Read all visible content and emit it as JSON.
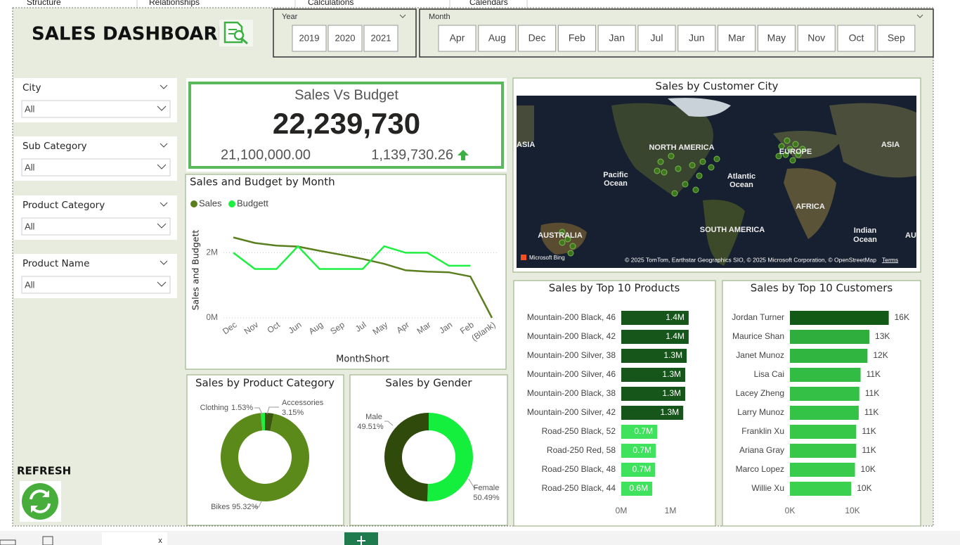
{
  "tabs": [
    "Structure",
    "Relationships",
    "Calculations",
    "Calendars"
  ],
  "header": {
    "title": "SALES DASHBOARD"
  },
  "year_slicer": {
    "title": "Year",
    "items": [
      "2019",
      "2020",
      "2021"
    ]
  },
  "month_slicer": {
    "title": "Month",
    "items": [
      "Apr",
      "Aug",
      "Dec",
      "Feb",
      "Jan",
      "Jul",
      "Jun",
      "Mar",
      "May",
      "Nov",
      "Oct",
      "Sep"
    ]
  },
  "slicers": [
    {
      "title": "City",
      "value": "All"
    },
    {
      "title": "Sub Category",
      "value": "All"
    },
    {
      "title": "Product Category",
      "value": "All"
    },
    {
      "title": "Product Name",
      "value": "All"
    }
  ],
  "refresh": {
    "label": "REFRESH"
  },
  "kpi": {
    "title": "Sales Vs Budget",
    "value": "22,239,730",
    "budget": "21,100,000.00",
    "variance": "1,139,730.26"
  },
  "map": {
    "title": "Sales by Customer City",
    "labels": [
      "ASIA",
      "NORTH AMERICA",
      "EUROPE",
      "ASIA",
      "Pacific",
      "Ocean",
      "Atlantic",
      "Ocean",
      "AFRICA",
      "SOUTH AMERICA",
      "AUSTRALIA",
      "Indian",
      "Ocean",
      "AU"
    ],
    "attribution": "Microsoft Bing",
    "copyright": "© 2025 TomTom, Earthstar Geographics SIO, © 2025 Microsoft Corporation, © OpenStreetMap",
    "terms": "Terms"
  },
  "footer": {
    "close": "x"
  },
  "chart_data": [
    {
      "type": "line",
      "title": "Sales and Budget by Month",
      "x_label": "MonthShort",
      "y_label": "Sales and Budgett",
      "categories": [
        "Dec",
        "Nov",
        "Oct",
        "Jun",
        "Aug",
        "Sep",
        "Jul",
        "May",
        "Apr",
        "Mar",
        "Jan",
        "Feb",
        "(Blank)"
      ],
      "series": [
        {
          "name": "Sales",
          "color": "#5b7f1e",
          "values": [
            2470000,
            2300000,
            2220000,
            2190000,
            2060000,
            1940000,
            1810000,
            1660000,
            1460000,
            1420000,
            1400000,
            1270000,
            0
          ]
        },
        {
          "name": "Budgett",
          "color": "#1ef041",
          "values": [
            2000000,
            1500000,
            1500000,
            2200000,
            1500000,
            1500000,
            1500000,
            2200000,
            2000000,
            2000000,
            1600000,
            1600000,
            null
          ]
        }
      ],
      "ylim": [
        0,
        2700000
      ],
      "yticks": [
        {
          "value": 0,
          "label": "0M"
        },
        {
          "value": 2000000,
          "label": "2M"
        }
      ],
      "grid": true,
      "legend": "top-left"
    },
    {
      "type": "donut",
      "title": "Sales by Product Category",
      "categories": [
        "Accessories",
        "Bikes",
        "Clothing"
      ],
      "values": [
        3.15,
        95.32,
        1.53
      ],
      "value_labels": [
        "3.15%",
        "95.32%",
        "1.53%"
      ],
      "colors": [
        "#3a5710",
        "#5b8a1a",
        "#1ef041"
      ]
    },
    {
      "type": "donut",
      "title": "Sales by Gender",
      "categories": [
        "Female",
        "Male"
      ],
      "values": [
        50.49,
        49.51
      ],
      "value_labels": [
        "50.49%",
        "49.51%"
      ],
      "colors": [
        "#14ee3c",
        "#2f4a0b"
      ]
    },
    {
      "type": "bar",
      "orientation": "horizontal",
      "title": "Sales by Top 10 Products",
      "categories": [
        "Mountain-200 Black, 46",
        "Mountain-200 Black, 42",
        "Mountain-200 Silver, 38",
        "Mountain-200 Silver, 46",
        "Mountain-200 Black, 38",
        "Mountain-200 Silver, 42",
        "Road-250 Black, 52",
        "Road-250 Red, 58",
        "Road-250 Black, 48",
        "Road-250 Black, 44"
      ],
      "values": [
        1370000,
        1370000,
        1330000,
        1300000,
        1300000,
        1260000,
        730000,
        700000,
        690000,
        630000
      ],
      "value_labels": [
        "1.4M",
        "1.4M",
        "1.3M",
        "1.3M",
        "1.3M",
        "1.3M",
        "0.7M",
        "0.7M",
        "0.7M",
        "0.6M"
      ],
      "value_label_position": "inside",
      "colors": [
        "#17561a",
        "#17561a",
        "#17561a",
        "#17561a",
        "#17561a",
        "#17561a",
        "#3fe25c",
        "#3fe25c",
        "#3fe25c",
        "#3fe25c"
      ],
      "xlim": [
        0,
        1700000
      ],
      "xticks": [
        {
          "value": 0,
          "label": "0M"
        },
        {
          "value": 1000000,
          "label": "1M"
        }
      ]
    },
    {
      "type": "bar",
      "orientation": "horizontal",
      "title": "Sales by Top 10 Customers",
      "categories": [
        "Jordan Turner",
        "Maurice Shan",
        "Janet Munoz",
        "Lisa Cai",
        "Lacey Zheng",
        "Larry Munoz",
        "Franklin Xu",
        "Ariana Gray",
        "Marco Lopez",
        "Willie Xu"
      ],
      "values": [
        15800,
        12700,
        12400,
        11300,
        11100,
        11000,
        10600,
        10600,
        10400,
        9800
      ],
      "value_labels": [
        "16K",
        "13K",
        "12K",
        "11K",
        "11K",
        "11K",
        "11K",
        "11K",
        "10K",
        "10K"
      ],
      "value_label_position": "outside",
      "colors": [
        "#135a17",
        "#2fae3e",
        "#31b541",
        "#33bc44",
        "#34c046",
        "#35c347",
        "#37c84a",
        "#37c84a",
        "#39cc4c",
        "#3bd04e"
      ],
      "xlim": [
        0,
        17000
      ],
      "xticks": [
        {
          "value": 0,
          "label": "0K"
        },
        {
          "value": 10000,
          "label": "10K"
        }
      ]
    }
  ]
}
